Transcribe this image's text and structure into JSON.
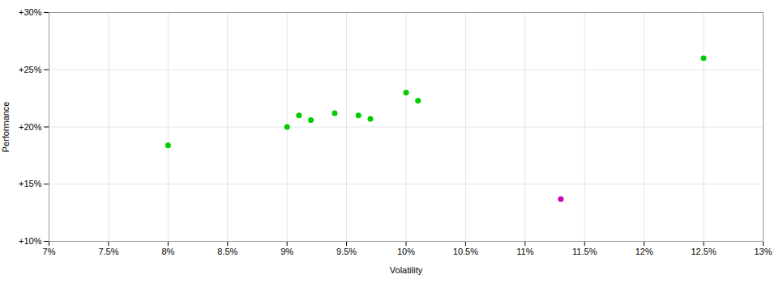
{
  "chart_data": {
    "type": "scatter",
    "xlabel": "Volatility",
    "ylabel": "Performance",
    "xlim": [
      0.07,
      0.13
    ],
    "ylim": [
      0.1,
      0.3
    ],
    "xticks": [
      {
        "value": 0.07,
        "label": "7%"
      },
      {
        "value": 0.075,
        "label": "7.5%"
      },
      {
        "value": 0.08,
        "label": "8%"
      },
      {
        "value": 0.085,
        "label": "8.5%"
      },
      {
        "value": 0.09,
        "label": "9%"
      },
      {
        "value": 0.095,
        "label": "9.5%"
      },
      {
        "value": 0.1,
        "label": "10%"
      },
      {
        "value": 0.105,
        "label": "10.5%"
      },
      {
        "value": 0.11,
        "label": "11%"
      },
      {
        "value": 0.115,
        "label": "11.5%"
      },
      {
        "value": 0.12,
        "label": "12%"
      },
      {
        "value": 0.125,
        "label": "12.5%"
      },
      {
        "value": 0.13,
        "label": "13%"
      }
    ],
    "yticks": [
      {
        "value": 0.1,
        "label": "+10%"
      },
      {
        "value": 0.15,
        "label": "+15%"
      },
      {
        "value": 0.2,
        "label": "+20%"
      },
      {
        "value": 0.25,
        "label": "+25%"
      },
      {
        "value": 0.3,
        "label": "+30%"
      }
    ],
    "grid": true,
    "series": [
      {
        "color": "#00cc00",
        "x": [
          0.08,
          0.09,
          0.091,
          0.092,
          0.094,
          0.096,
          0.097,
          0.1,
          0.101,
          0.125
        ],
        "values": [
          0.184,
          0.2,
          0.21,
          0.206,
          0.212,
          0.21,
          0.207,
          0.23,
          0.223,
          0.26
        ]
      },
      {
        "color": "#cc00bb",
        "x": [
          0.113
        ],
        "values": [
          0.137
        ]
      }
    ]
  }
}
